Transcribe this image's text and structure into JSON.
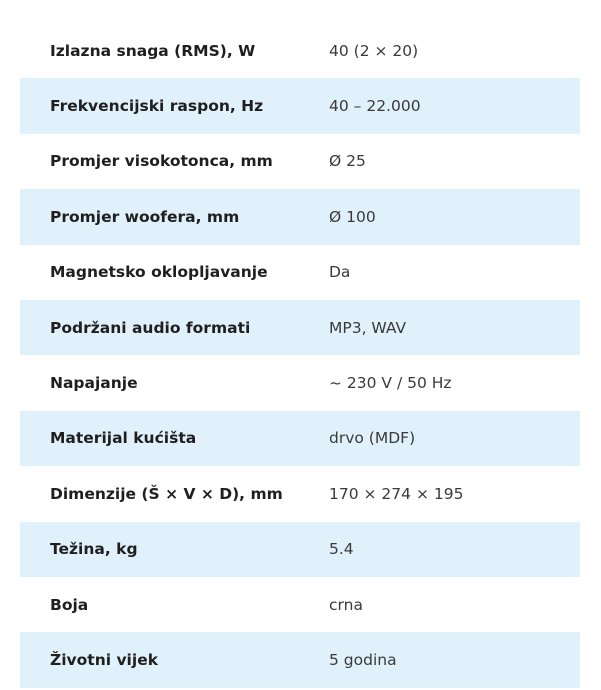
{
  "colors": {
    "stripe": "#e1f1fc",
    "text": "#1f1f1f"
  },
  "specs": [
    {
      "label": "Izlazna snaga (RMS), W",
      "value": "40 (2 × 20)"
    },
    {
      "label": "Frekvencijski raspon, Hz",
      "value": "40 – 22.000"
    },
    {
      "label": "Promjer visokotonca, mm",
      "value": "Ø 25"
    },
    {
      "label": "Promjer woofera, mm",
      "value": "Ø 100"
    },
    {
      "label": "Magnetsko oklopljavanje",
      "value": "Da"
    },
    {
      "label": "Podržani audio formati",
      "value": "MP3, WAV"
    },
    {
      "label": "Napajanje",
      "value": "~ 230 V / 50 Hz"
    },
    {
      "label": "Materijal kućišta",
      "value": "drvo (MDF)"
    },
    {
      "label": "Dimenzije (Š × V × D), mm",
      "value": "170 × 274 × 195"
    },
    {
      "label": "Težina, kg",
      "value": "5.4"
    },
    {
      "label": "Boja",
      "value": "crna"
    },
    {
      "label": "Životni vijek",
      "value": "5 godina"
    }
  ]
}
